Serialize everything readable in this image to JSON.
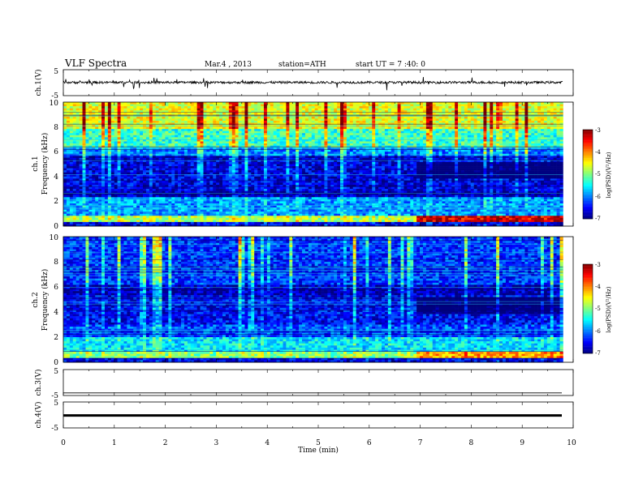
{
  "header": {
    "title": "VLF  Spectra",
    "date": "Mar.4  , 2013",
    "station": "station=ATH",
    "start_ut": "start  UT  =   7  :40: 0"
  },
  "chart_data": [
    {
      "type": "line",
      "panel": "ch1-waveform",
      "ylabel": "ch.1(V)",
      "ylim": [
        -5,
        5
      ],
      "yticks": [
        "5",
        "-5"
      ],
      "baseline_level": 0.1,
      "xlim": [
        0,
        10
      ]
    },
    {
      "type": "heatmap",
      "panel": "ch1-spectrogram",
      "ylabel": "Frequency  (kHz)",
      "channel_label": "ch.1",
      "ylim": [
        0,
        10
      ],
      "yticks": [
        "0",
        "2",
        "4",
        "6",
        "8",
        "10"
      ],
      "xlim": [
        0,
        10
      ],
      "data_end_min": 9.8,
      "colorbar": {
        "label": "log(PSD)(V²/Hz)",
        "ticks": [
          "-3",
          "-4",
          "-5",
          "-6",
          "-7"
        ],
        "range": [
          -7,
          -3
        ]
      },
      "bands": [
        {
          "f_min": 0.0,
          "f_max": 0.3,
          "level": -6.6
        },
        {
          "f_min": 0.3,
          "f_max": 0.9,
          "level": -4.8
        },
        {
          "f_min": 0.9,
          "f_max": 2.3,
          "level": -5.9
        },
        {
          "f_min": 2.3,
          "f_max": 2.9,
          "level": -6.8
        },
        {
          "f_min": 2.9,
          "f_max": 5.6,
          "level": -6.6
        },
        {
          "f_min": 5.6,
          "f_max": 6.4,
          "level": -6.0
        },
        {
          "f_min": 6.4,
          "f_max": 7.8,
          "level": -5.3
        },
        {
          "f_min": 7.8,
          "f_max": 10.0,
          "level": -4.6
        }
      ],
      "event": {
        "t_start": 6.9,
        "note": "dark gap 4-5 kHz, enhanced 0.3-0.9 kHz"
      }
    },
    {
      "type": "heatmap",
      "panel": "ch2-spectrogram",
      "ylabel": "Frequency  (kHz)",
      "channel_label": "ch.2",
      "ylim": [
        0,
        10
      ],
      "yticks": [
        "0",
        "2",
        "4",
        "6",
        "8",
        "10"
      ],
      "xlim": [
        0,
        10
      ],
      "data_end_min": 9.8,
      "colorbar": {
        "label": "log(PSD)(V²/Hz)",
        "ticks": [
          "-3",
          "-4",
          "-5",
          "-6",
          "-7"
        ],
        "range": [
          -7,
          -3
        ]
      },
      "bands": [
        {
          "f_min": 0.0,
          "f_max": 0.3,
          "level": -6.6
        },
        {
          "f_min": 0.3,
          "f_max": 0.9,
          "level": -5.0
        },
        {
          "f_min": 0.9,
          "f_max": 2.0,
          "level": -5.6
        },
        {
          "f_min": 2.0,
          "f_max": 3.0,
          "level": -6.2
        },
        {
          "f_min": 3.0,
          "f_max": 5.4,
          "level": -6.5
        },
        {
          "f_min": 5.4,
          "f_max": 6.2,
          "level": -6.8
        },
        {
          "f_min": 6.2,
          "f_max": 10.0,
          "level": -6.3
        }
      ],
      "event": {
        "t_start": 6.9,
        "note": "darker 4-5 kHz"
      }
    },
    {
      "type": "line",
      "panel": "ch3-waveform",
      "ylabel": "ch.3(V)",
      "ylim": [
        -5,
        5
      ],
      "yticks": [
        "5",
        "-5"
      ],
      "baseline_level": -4.0,
      "xlim": [
        0,
        10
      ]
    },
    {
      "type": "line",
      "panel": "ch4-waveform",
      "ylabel": "ch.4(V)",
      "ylim": [
        -5,
        5
      ],
      "yticks": [
        "5",
        "-5"
      ],
      "baseline_level": -0.2,
      "xlim": [
        0,
        10
      ]
    }
  ],
  "x_axis": {
    "label": "Time  (min)",
    "ticks": [
      "0",
      "1",
      "2",
      "3",
      "4",
      "5",
      "6",
      "7",
      "8",
      "9",
      "10"
    ],
    "range": [
      0,
      10
    ]
  }
}
